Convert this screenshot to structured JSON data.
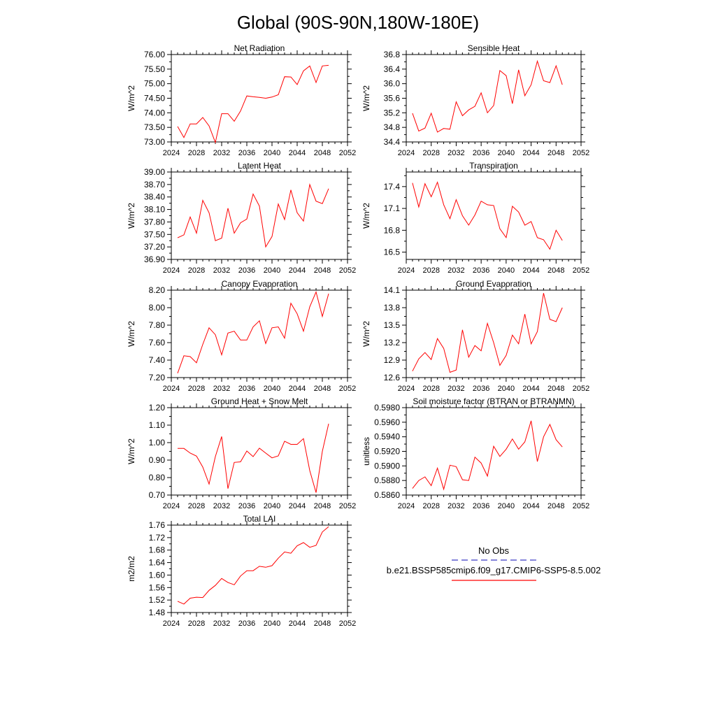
{
  "page_title": "Global (90S-90N,180W-180E)",
  "legend": {
    "obs_label": "No Obs",
    "obs_color": "#3b3bc4",
    "case_label": "b.e21.BSSP585cmip6.f09_g17.CMIP6-SSP5-8.5.002",
    "case_color": "#ff0000"
  },
  "line_color": "#ff0000",
  "chart_data": [
    {
      "type": "line",
      "title": "Net Radiation",
      "ylabel": "W/m^2",
      "xlim": [
        2024,
        2052
      ],
      "xticks": [
        "2024",
        "2028",
        "2032",
        "2036",
        "2040",
        "2044",
        "2048",
        "2052"
      ],
      "ylim": [
        73.0,
        76.0
      ],
      "yticks": [
        "73.00",
        "73.50",
        "74.00",
        "74.50",
        "75.00",
        "75.50",
        "76.00"
      ],
      "x": [
        2025,
        2026,
        2027,
        2028,
        2029,
        2030,
        2031,
        2032,
        2033,
        2034,
        2035,
        2036,
        2037,
        2038,
        2039,
        2040,
        2041,
        2042,
        2043,
        2044,
        2045,
        2046,
        2047,
        2048,
        2049
      ],
      "values": [
        73.53,
        73.15,
        73.62,
        73.62,
        73.84,
        73.55,
        72.98,
        73.97,
        73.97,
        73.71,
        74.06,
        74.58,
        74.55,
        74.53,
        74.5,
        74.54,
        74.62,
        75.24,
        75.23,
        74.97,
        75.44,
        75.61,
        75.04,
        75.61,
        75.63
      ]
    },
    {
      "type": "line",
      "title": "Sensible Heat",
      "ylabel": "W/m^2",
      "xlim": [
        2024,
        2052
      ],
      "xticks": [
        "2024",
        "2028",
        "2032",
        "2036",
        "2040",
        "2044",
        "2048",
        "2052"
      ],
      "ylim": [
        34.4,
        36.8
      ],
      "yticks": [
        "34.4",
        "34.8",
        "35.2",
        "35.6",
        "36.0",
        "36.4",
        "36.8"
      ],
      "x": [
        2025,
        2026,
        2027,
        2028,
        2029,
        2030,
        2031,
        2032,
        2033,
        2034,
        2035,
        2036,
        2037,
        2038,
        2039,
        2040,
        2041,
        2042,
        2043,
        2044,
        2045,
        2046,
        2047,
        2048,
        2049
      ],
      "values": [
        35.19,
        34.7,
        34.78,
        35.19,
        34.67,
        34.77,
        34.75,
        35.5,
        35.12,
        35.28,
        35.38,
        35.75,
        35.2,
        35.4,
        36.36,
        36.22,
        35.45,
        36.38,
        35.67,
        35.97,
        36.62,
        36.08,
        36.03,
        36.49,
        35.97
      ]
    },
    {
      "type": "line",
      "title": "Latent Heat",
      "ylabel": "W/m^2",
      "xlim": [
        2024,
        2052
      ],
      "xticks": [
        "2024",
        "2028",
        "2032",
        "2036",
        "2040",
        "2044",
        "2048",
        "2052"
      ],
      "ylim": [
        36.9,
        39.0
      ],
      "yticks": [
        "36.90",
        "37.20",
        "37.50",
        "37.80",
        "38.10",
        "38.40",
        "38.70",
        "39.00"
      ],
      "x": [
        2025,
        2026,
        2027,
        2028,
        2029,
        2030,
        2031,
        2032,
        2033,
        2034,
        2035,
        2036,
        2037,
        2038,
        2039,
        2040,
        2041,
        2042,
        2043,
        2044,
        2045,
        2046,
        2047,
        2048,
        2049
      ],
      "values": [
        37.42,
        37.49,
        37.92,
        37.53,
        38.32,
        38.02,
        37.35,
        37.41,
        38.13,
        37.53,
        37.78,
        37.87,
        38.47,
        38.18,
        37.2,
        37.45,
        38.23,
        37.86,
        38.57,
        38.02,
        37.82,
        38.7,
        38.3,
        38.24,
        38.6
      ]
    },
    {
      "type": "line",
      "title": "Transpiration",
      "ylabel": "W/m^2",
      "xlim": [
        2024,
        2052
      ],
      "xticks": [
        "2024",
        "2028",
        "2032",
        "2036",
        "2040",
        "2044",
        "2048",
        "2052"
      ],
      "ylim": [
        16.4,
        17.6
      ],
      "yticks": [
        "16.5",
        "16.8",
        "17.1",
        "17.4"
      ],
      "x": [
        2025,
        2026,
        2027,
        2028,
        2029,
        2030,
        2031,
        2032,
        2033,
        2034,
        2035,
        2036,
        2037,
        2038,
        2039,
        2040,
        2041,
        2042,
        2043,
        2044,
        2045,
        2046,
        2047,
        2048,
        2049
      ],
      "values": [
        17.45,
        17.12,
        17.44,
        17.26,
        17.46,
        17.15,
        16.96,
        17.22,
        17.0,
        16.87,
        17.01,
        17.2,
        17.15,
        17.14,
        16.82,
        16.7,
        17.13,
        17.05,
        16.87,
        16.92,
        16.7,
        16.67,
        16.54,
        16.8,
        16.66
      ]
    },
    {
      "type": "line",
      "title": "Canopy Evaporation",
      "ylabel": "W/m^2",
      "xlim": [
        2024,
        2052
      ],
      "xticks": [
        "2024",
        "2028",
        "2032",
        "2036",
        "2040",
        "2044",
        "2048",
        "2052"
      ],
      "ylim": [
        7.2,
        8.2
      ],
      "yticks": [
        "7.20",
        "7.40",
        "7.60",
        "7.80",
        "8.00",
        "8.20"
      ],
      "x": [
        2025,
        2026,
        2027,
        2028,
        2029,
        2030,
        2031,
        2032,
        2033,
        2034,
        2035,
        2036,
        2037,
        2038,
        2039,
        2040,
        2041,
        2042,
        2043,
        2044,
        2045,
        2046,
        2047,
        2048,
        2049
      ],
      "values": [
        7.25,
        7.45,
        7.44,
        7.37,
        7.58,
        7.77,
        7.69,
        7.46,
        7.71,
        7.73,
        7.63,
        7.63,
        7.78,
        7.85,
        7.59,
        7.77,
        7.78,
        7.65,
        8.05,
        7.93,
        7.73,
        8.01,
        8.18,
        7.9,
        8.16
      ]
    },
    {
      "type": "line",
      "title": "Ground Evaporation",
      "ylabel": "W/m^2",
      "xlim": [
        2024,
        2052
      ],
      "xticks": [
        "2024",
        "2028",
        "2032",
        "2036",
        "2040",
        "2044",
        "2048",
        "2052"
      ],
      "ylim": [
        12.6,
        14.1
      ],
      "yticks": [
        "12.6",
        "12.9",
        "13.2",
        "13.5",
        "13.8",
        "14.1"
      ],
      "x": [
        2025,
        2026,
        2027,
        2028,
        2029,
        2030,
        2031,
        2032,
        2033,
        2034,
        2035,
        2036,
        2037,
        2038,
        2039,
        2040,
        2041,
        2042,
        2043,
        2044,
        2045,
        2046,
        2047,
        2048,
        2049
      ],
      "values": [
        12.71,
        12.92,
        13.03,
        12.91,
        13.27,
        13.1,
        12.69,
        12.73,
        13.42,
        12.95,
        13.15,
        13.06,
        13.53,
        13.2,
        12.81,
        12.98,
        13.33,
        13.18,
        13.69,
        13.18,
        13.39,
        14.05,
        13.6,
        13.56,
        13.8
      ]
    },
    {
      "type": "line",
      "title": "Ground Heat + Snow Melt",
      "ylabel": "W/m^2",
      "xlim": [
        2024,
        2052
      ],
      "xticks": [
        "2024",
        "2028",
        "2032",
        "2036",
        "2040",
        "2044",
        "2048",
        "2052"
      ],
      "ylim": [
        0.7,
        1.2
      ],
      "yticks": [
        "0.70",
        "0.80",
        "0.90",
        "1.00",
        "1.10",
        "1.20"
      ],
      "x": [
        2025,
        2026,
        2027,
        2028,
        2029,
        2030,
        2031,
        2032,
        2033,
        2034,
        2035,
        2036,
        2037,
        2038,
        2039,
        2040,
        2041,
        2042,
        2043,
        2044,
        2045,
        2046,
        2047,
        2048,
        2049
      ],
      "values": [
        0.967,
        0.967,
        0.94,
        0.923,
        0.86,
        0.763,
        0.92,
        1.035,
        0.737,
        0.887,
        0.89,
        0.952,
        0.92,
        0.968,
        0.94,
        0.913,
        0.924,
        1.008,
        0.99,
        0.99,
        1.023,
        0.84,
        0.714,
        0.95,
        1.108
      ]
    },
    {
      "type": "line",
      "title": "Soil moisture factor (BTRAN or BTRANMN)",
      "ylabel": "unitless",
      "xlim": [
        2024,
        2052
      ],
      "xticks": [
        "2024",
        "2028",
        "2032",
        "2036",
        "2040",
        "2044",
        "2048",
        "2052"
      ],
      "ylim": [
        0.586,
        0.598
      ],
      "yticks": [
        "0.5860",
        "0.5880",
        "0.5900",
        "0.5920",
        "0.5940",
        "0.5960",
        "0.5980"
      ],
      "x": [
        2025,
        2026,
        2027,
        2028,
        2029,
        2030,
        2031,
        2032,
        2033,
        2034,
        2035,
        2036,
        2037,
        2038,
        2039,
        2040,
        2041,
        2042,
        2043,
        2044,
        2045,
        2046,
        2047,
        2048,
        2049
      ],
      "values": [
        0.5869,
        0.588,
        0.5885,
        0.5873,
        0.5897,
        0.5868,
        0.5901,
        0.5899,
        0.5881,
        0.588,
        0.5912,
        0.5904,
        0.5886,
        0.5927,
        0.5913,
        0.5923,
        0.5937,
        0.5923,
        0.5933,
        0.5962,
        0.5906,
        0.594,
        0.5957,
        0.5936,
        0.5926
      ]
    },
    {
      "type": "line",
      "title": "Total LAI",
      "ylabel": "m2/m2",
      "xlim": [
        2024,
        2052
      ],
      "xticks": [
        "2024",
        "2028",
        "2032",
        "2036",
        "2040",
        "2044",
        "2048",
        "2052"
      ],
      "ylim": [
        1.48,
        1.76
      ],
      "yticks": [
        "1.48",
        "1.52",
        "1.56",
        "1.60",
        "1.64",
        "1.68",
        "1.72",
        "1.76"
      ],
      "x": [
        2025,
        2026,
        2027,
        2028,
        2029,
        2030,
        2031,
        2032,
        2033,
        2034,
        2035,
        2036,
        2037,
        2038,
        2039,
        2040,
        2041,
        2042,
        2043,
        2044,
        2045,
        2046,
        2047,
        2048,
        2049
      ],
      "values": [
        1.516,
        1.507,
        1.526,
        1.529,
        1.528,
        1.551,
        1.567,
        1.589,
        1.576,
        1.569,
        1.597,
        1.614,
        1.614,
        1.628,
        1.625,
        1.63,
        1.654,
        1.674,
        1.67,
        1.694,
        1.704,
        1.689,
        1.695,
        1.738,
        1.755
      ]
    }
  ]
}
